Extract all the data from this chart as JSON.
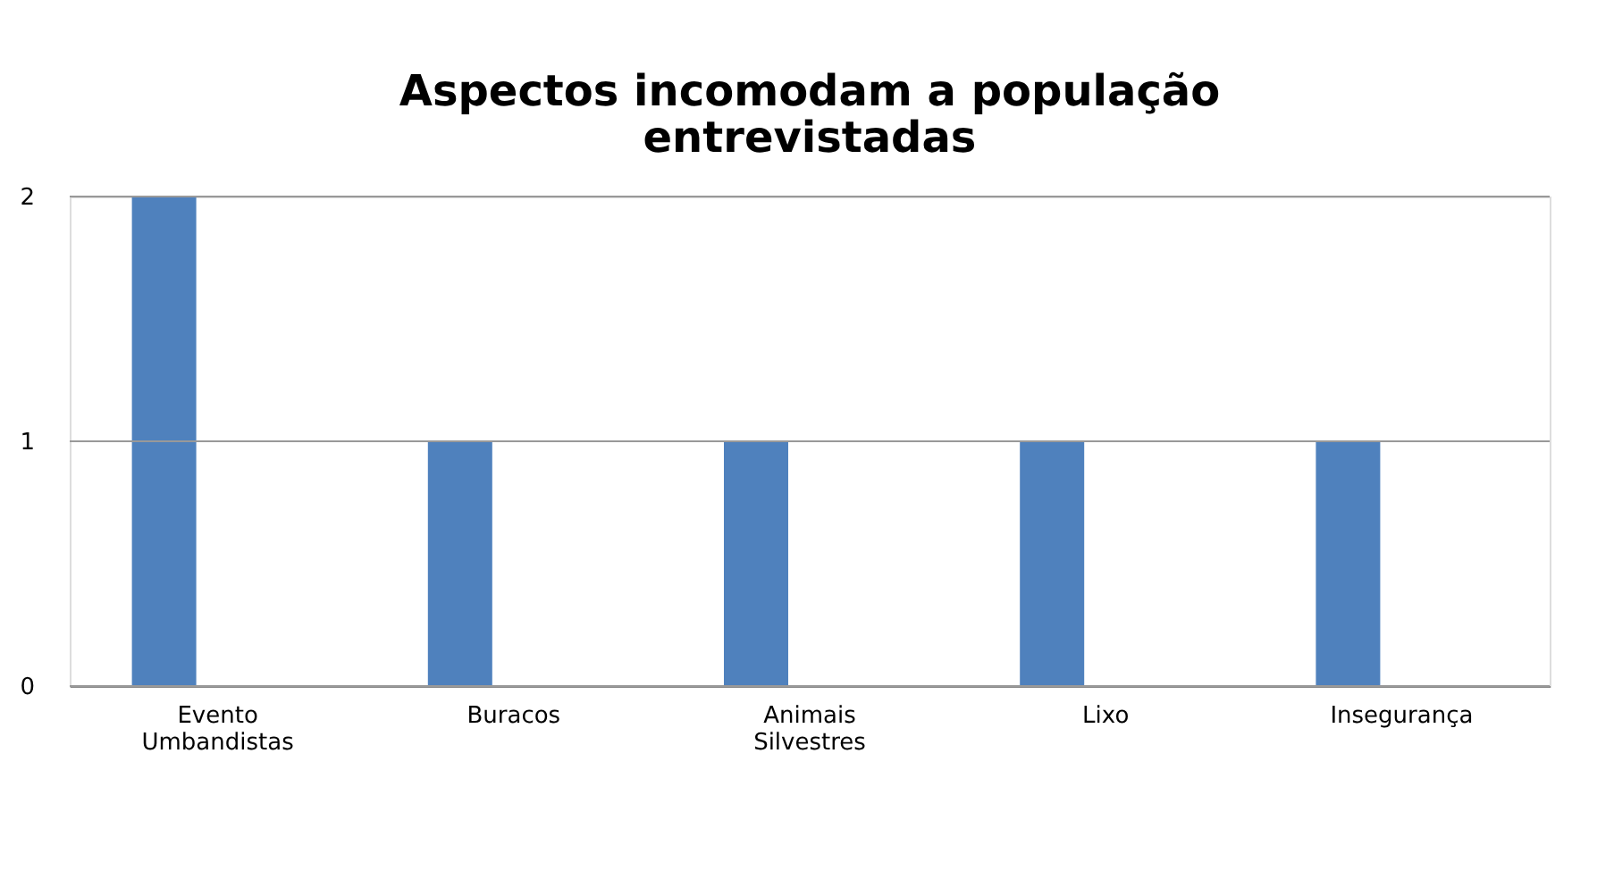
{
  "chart_data": {
    "type": "bar",
    "title": "Aspectos incomodam a população entrevistadas",
    "categories": [
      "Evento Umbandistas",
      "Buracos",
      "Animais Silvestres",
      "Lixo",
      "Insegurança"
    ],
    "values": [
      2,
      1,
      1,
      1,
      1
    ],
    "color": "#4f81bd",
    "ylim": [
      0,
      2
    ],
    "yticks": [
      0,
      1,
      2
    ],
    "grid": "y"
  }
}
